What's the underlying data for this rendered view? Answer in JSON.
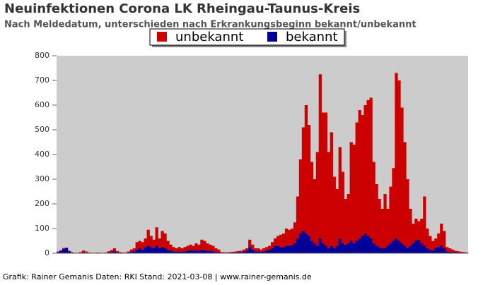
{
  "chart_data": {
    "type": "stacked_bar",
    "title": "Neuinfektionen Corona LK Rheingau-Taunus-Kreis",
    "subtitle": "Nach Meldedatum, unterschieden nach Erkrankungsbeginn bekannt/unbekannt",
    "footer": "Grafik: Rainer Gemanis Daten: RKI Stand: 2021-03-08 | www.rainer-gemanis.de",
    "legend": "top",
    "ylim": [
      0,
      800
    ],
    "yticks": [
      0,
      100,
      200,
      300,
      400,
      500,
      600,
      700,
      800
    ],
    "series": [
      {
        "name": "bekannt",
        "color": "#000099",
        "values": [
          5,
          10,
          18,
          20,
          8,
          3,
          1,
          1,
          2,
          3,
          2,
          1,
          1,
          1,
          1,
          1,
          1,
          1,
          3,
          5,
          8,
          3,
          2,
          1,
          1,
          4,
          5,
          8,
          15,
          20,
          15,
          25,
          30,
          25,
          20,
          30,
          20,
          25,
          20,
          15,
          10,
          8,
          6,
          8,
          6,
          8,
          10,
          12,
          10,
          12,
          10,
          15,
          12,
          10,
          10,
          8,
          5,
          5,
          2,
          2,
          2,
          2,
          3,
          3,
          4,
          5,
          8,
          10,
          25,
          15,
          8,
          8,
          6,
          8,
          10,
          15,
          20,
          30,
          30,
          25,
          25,
          30,
          30,
          35,
          40,
          60,
          80,
          90,
          80,
          70,
          50,
          40,
          30,
          60,
          40,
          30,
          20,
          30,
          20,
          30,
          60,
          40,
          35,
          40,
          50,
          40,
          50,
          60,
          70,
          80,
          70,
          60,
          40,
          30,
          25,
          20,
          20,
          30,
          40,
          50,
          60,
          50,
          40,
          30,
          20,
          30,
          40,
          50,
          55,
          40,
          30,
          20,
          15,
          10,
          20,
          25,
          30,
          20,
          8,
          5,
          5,
          4,
          3,
          2,
          2,
          1
        ]
      },
      {
        "name": "unbekannt",
        "color": "#cc0000",
        "values": [
          2,
          2,
          3,
          3,
          2,
          1,
          1,
          1,
          3,
          8,
          5,
          2,
          1,
          1,
          2,
          1,
          1,
          2,
          5,
          8,
          12,
          6,
          3,
          2,
          2,
          3,
          10,
          12,
          30,
          30,
          30,
          35,
          65,
          45,
          35,
          75,
          40,
          65,
          60,
          35,
          25,
          17,
          14,
          17,
          14,
          17,
          20,
          23,
          20,
          28,
          25,
          40,
          38,
          30,
          25,
          22,
          15,
          10,
          3,
          2,
          2,
          3,
          3,
          4,
          5,
          5,
          7,
          10,
          30,
          20,
          12,
          12,
          9,
          12,
          15,
          15,
          25,
          30,
          40,
          50,
          55,
          70,
          65,
          65,
          85,
          170,
          300,
          420,
          520,
          450,
          320,
          260,
          380,
          665,
          530,
          540,
          390,
          460,
          290,
          230,
          370,
          290,
          185,
          200,
          400,
          400,
          480,
          520,
          490,
          520,
          550,
          570,
          330,
          250,
          195,
          160,
          220,
          150,
          230,
          295,
          670,
          650,
          550,
          420,
          280,
          150,
          80,
          90,
          75,
          100,
          200,
          80,
          55,
          40,
          40,
          55,
          90,
          70,
          17,
          15,
          10,
          6,
          5,
          4,
          3,
          2
        ]
      }
    ]
  }
}
